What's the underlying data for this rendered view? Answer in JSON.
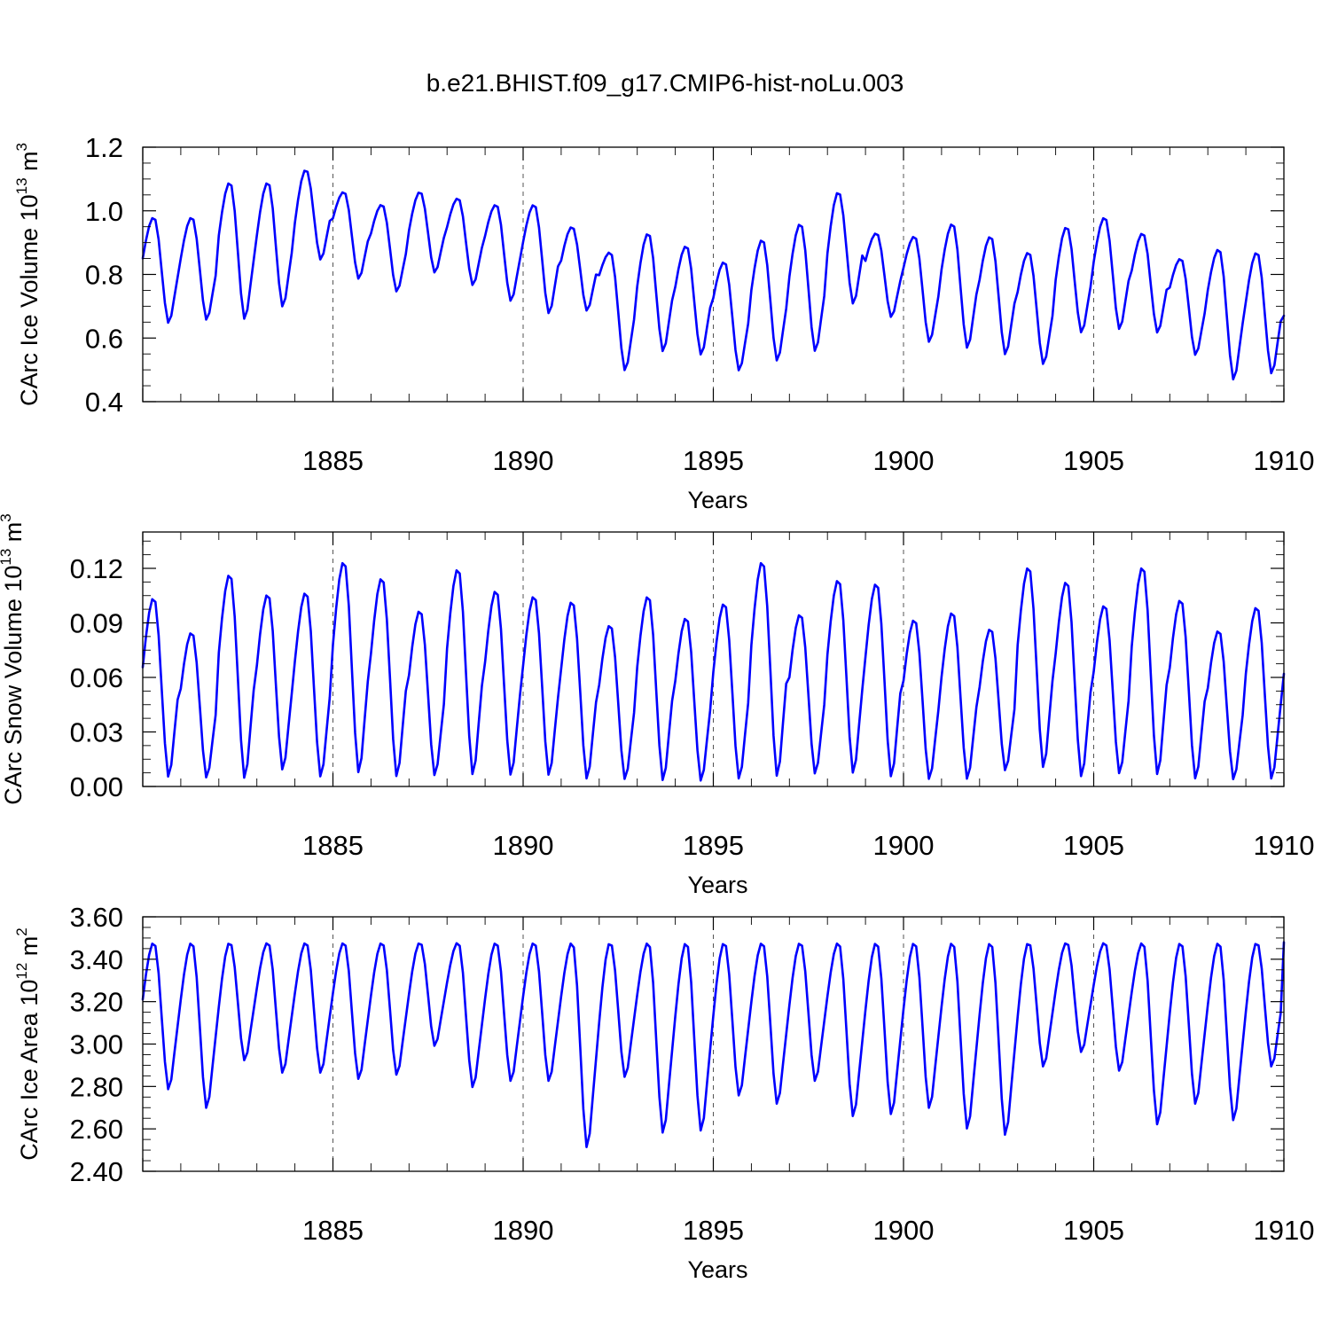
{
  "figure": {
    "title": "b.e21.BHIST.f09_g17.CMIP6-hist-noLu.003",
    "line_color": "#0000ff"
  },
  "chart_data": [
    {
      "type": "line",
      "title": "b.e21.BHIST.f09_g17.CMIP6-hist-noLu.003",
      "xlabel": "Years",
      "ylabel": "CArc Ice Volume 10",
      "ylabel_exp": "13",
      "ylabel_unit": " m",
      "ylabel_unit_exp": "3",
      "xlim": [
        1880,
        1910
      ],
      "ylim": [
        0.4,
        1.2
      ],
      "xticks": [
        1885,
        1890,
        1895,
        1900,
        1905,
        1910
      ],
      "yticks": [
        0.4,
        0.6,
        0.8,
        1.0,
        1.2
      ],
      "ytick_labels": [
        "0.4",
        "0.6",
        "0.8",
        "1.0",
        "1.2"
      ],
      "grid": "vertical dashed at major x ticks",
      "series": [
        {
          "values_by_year": [
            [
              0.64,
              0.98
            ],
            [
              0.65,
              0.98
            ],
            [
              0.65,
              1.09
            ],
            [
              0.69,
              1.09
            ],
            [
              0.84,
              1.13
            ],
            [
              0.78,
              1.06
            ],
            [
              0.74,
              1.02
            ],
            [
              0.8,
              1.06
            ],
            [
              0.76,
              1.04
            ],
            [
              0.71,
              1.02
            ],
            [
              0.67,
              1.02
            ],
            [
              0.68,
              0.95
            ],
            [
              0.49,
              0.87
            ],
            [
              0.55,
              0.93
            ],
            [
              0.54,
              0.89
            ],
            [
              0.49,
              0.84
            ],
            [
              0.52,
              0.91
            ],
            [
              0.55,
              0.96
            ],
            [
              0.7,
              1.06
            ],
            [
              0.66,
              0.93
            ],
            [
              0.58,
              0.92
            ],
            [
              0.56,
              0.96
            ],
            [
              0.54,
              0.92
            ],
            [
              0.51,
              0.87
            ],
            [
              0.61,
              0.95
            ],
            [
              0.62,
              0.98
            ],
            [
              0.61,
              0.93
            ],
            [
              0.54,
              0.85
            ],
            [
              0.46,
              0.88
            ],
            [
              0.48,
              0.87
            ]
          ],
          "end_value": 0.67
        }
      ]
    },
    {
      "type": "line",
      "xlabel": "Years",
      "ylabel": "CArc Snow Volume 10",
      "ylabel_exp": "13",
      "ylabel_unit": " m",
      "ylabel_unit_exp": "3",
      "xlim": [
        1880,
        1910
      ],
      "ylim": [
        0.0,
        0.14
      ],
      "xticks": [
        1885,
        1890,
        1895,
        1900,
        1905,
        1910
      ],
      "yticks": [
        0.0,
        0.03,
        0.06,
        0.09,
        0.12
      ],
      "ytick_labels": [
        "0.00",
        "0.03",
        "0.06",
        "0.09",
        "0.12"
      ],
      "grid": "vertical dashed at major x ticks",
      "series": [
        {
          "values_by_year": [
            [
              0.003,
              0.104
            ],
            [
              0.003,
              0.085
            ],
            [
              0.002,
              0.117
            ],
            [
              0.007,
              0.106
            ],
            [
              0.003,
              0.107
            ],
            [
              0.005,
              0.124
            ],
            [
              0.003,
              0.115
            ],
            [
              0.004,
              0.097
            ],
            [
              0.004,
              0.12
            ],
            [
              0.004,
              0.108
            ],
            [
              0.004,
              0.105
            ],
            [
              0.002,
              0.102
            ],
            [
              0.002,
              0.089
            ],
            [
              0.001,
              0.105
            ],
            [
              0.001,
              0.093
            ],
            [
              0.002,
              0.101
            ],
            [
              0.003,
              0.124
            ],
            [
              0.005,
              0.095
            ],
            [
              0.005,
              0.114
            ],
            [
              0.003,
              0.112
            ],
            [
              0.002,
              0.092
            ],
            [
              0.002,
              0.096
            ],
            [
              0.007,
              0.087
            ],
            [
              0.008,
              0.121
            ],
            [
              0.003,
              0.113
            ],
            [
              0.005,
              0.1
            ],
            [
              0.004,
              0.121
            ],
            [
              0.002,
              0.103
            ],
            [
              0.002,
              0.086
            ],
            [
              0.002,
              0.099
            ]
          ],
          "end_value": 0.062
        }
      ]
    },
    {
      "type": "line",
      "xlabel": "Years",
      "ylabel": "CArc Ice Area 10",
      "ylabel_exp": "12",
      "ylabel_unit": " m",
      "ylabel_unit_exp": "2",
      "xlim": [
        1880,
        1910
      ],
      "ylim": [
        2.4,
        3.6
      ],
      "xticks": [
        1885,
        1890,
        1895,
        1900,
        1905,
        1910
      ],
      "yticks": [
        2.4,
        2.6,
        2.8,
        3.0,
        3.2,
        3.4,
        3.6
      ],
      "ytick_labels": [
        "2.40",
        "2.60",
        "2.80",
        "3.00",
        "3.20",
        "3.40",
        "3.60"
      ],
      "grid": "vertical dashed at major x ticks",
      "series": [
        {
          "values_by_year": [
            [
              2.77,
              3.48
            ],
            [
              2.68,
              3.48
            ],
            [
              2.91,
              3.48
            ],
            [
              2.85,
              3.48
            ],
            [
              2.85,
              3.48
            ],
            [
              2.82,
              3.48
            ],
            [
              2.84,
              3.48
            ],
            [
              2.98,
              3.48
            ],
            [
              2.78,
              3.48
            ],
            [
              2.81,
              3.48
            ],
            [
              2.81,
              3.48
            ],
            [
              2.49,
              3.48
            ],
            [
              2.83,
              3.48
            ],
            [
              2.56,
              3.48
            ],
            [
              2.57,
              3.48
            ],
            [
              2.74,
              3.48
            ],
            [
              2.7,
              3.48
            ],
            [
              2.81,
              3.48
            ],
            [
              2.64,
              3.48
            ],
            [
              2.65,
              3.48
            ],
            [
              2.68,
              3.48
            ],
            [
              2.58,
              3.48
            ],
            [
              2.55,
              3.48
            ],
            [
              2.88,
              3.48
            ],
            [
              2.95,
              3.48
            ],
            [
              2.86,
              3.48
            ],
            [
              2.6,
              3.48
            ],
            [
              2.7,
              3.48
            ],
            [
              2.62,
              3.48
            ],
            [
              2.88,
              3.48
            ]
          ],
          "end_value": 3.48
        }
      ]
    }
  ]
}
